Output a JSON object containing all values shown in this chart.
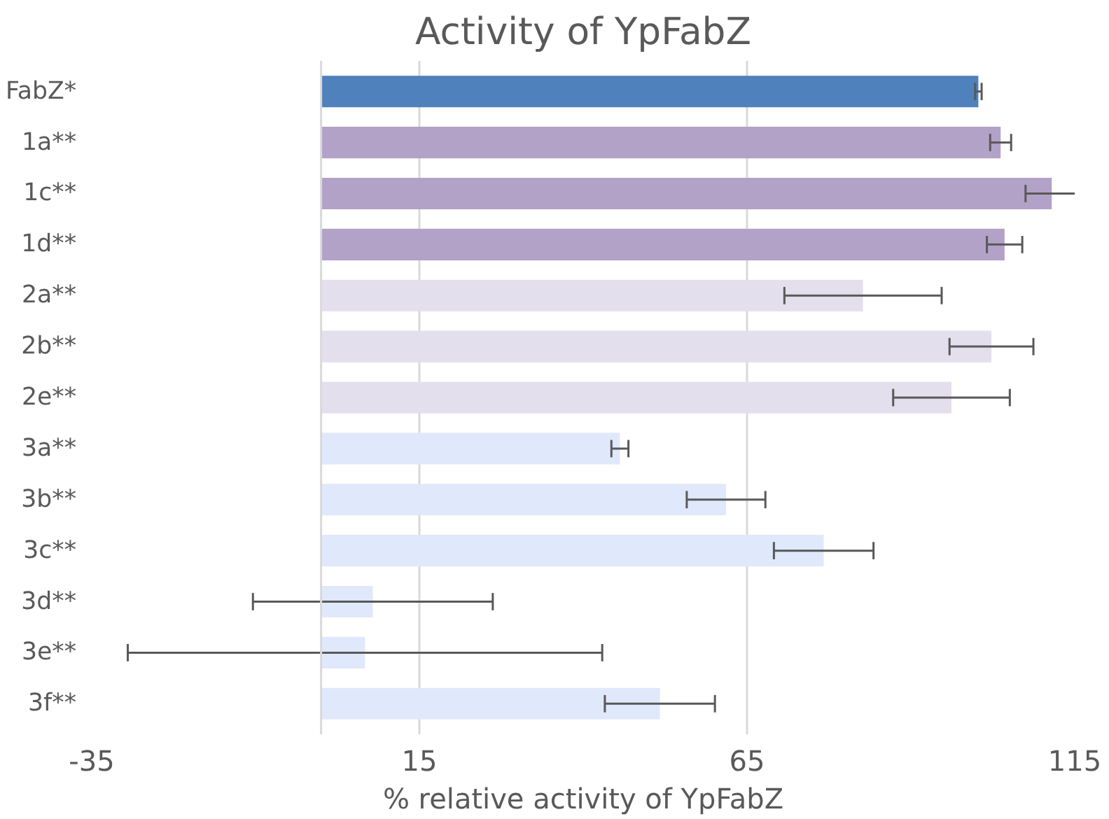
{
  "chart_data": {
    "type": "bar",
    "orientation": "horizontal",
    "title": "Activity of YpFabZ",
    "xlabel": "% relative activity of YpFabZ",
    "categories": [
      "FabZ*",
      "1a**",
      "1c**",
      "1d**",
      "2a**",
      "2b**",
      "2e**",
      "3a**",
      "3b**",
      "3c**",
      "3d**",
      "3e**",
      "3f**"
    ],
    "values": [
      100.3,
      103.7,
      111.5,
      104.3,
      82.7,
      102.3,
      96.2,
      45.6,
      61.8,
      76.7,
      7.9,
      6.7,
      51.7
    ],
    "errors": [
      0.5,
      1.6,
      4,
      2.7,
      12,
      6.4,
      8.9,
      1.3,
      6,
      7.6,
      18.3,
      36.2,
      8.4
    ],
    "colors": [
      "#4f81bd",
      "#b3a2c7",
      "#b3a2c7",
      "#b3a2c7",
      "#e4dfec",
      "#e4dfec",
      "#e4dfec",
      "#dfe9fb",
      "#dfe9fb",
      "#dfe9fb",
      "#dfe9fb",
      "#dfe9fb",
      "#dfe9fb"
    ],
    "xlim": [
      -35,
      115
    ],
    "xticks": [
      -35,
      15,
      65,
      115
    ],
    "grid": "x",
    "ref_lines": [
      {
        "axis": "x",
        "value": 0,
        "label": null,
        "color": "#d9d9d9"
      }
    ]
  }
}
